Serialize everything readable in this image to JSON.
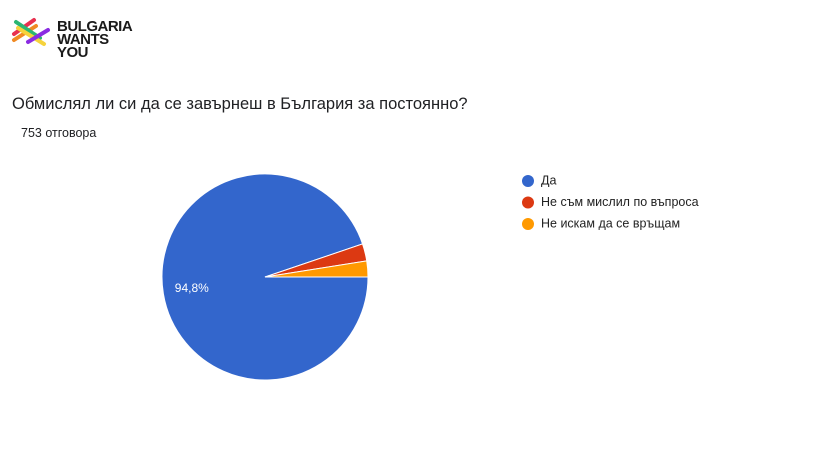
{
  "logo": {
    "lines": [
      "BULGARIA",
      "WANTS",
      "YOU"
    ]
  },
  "question": "Обмислял ли си да се завърнеш в България за постоянно?",
  "responses": "753 отговора",
  "chart_data": {
    "type": "pie",
    "categories": [
      "Да",
      "Не съм мислил по въпроса",
      "Не искам да се връщам"
    ],
    "values": [
      94.8,
      2.7,
      2.5
    ],
    "value_labels": [
      "94,8%",
      null,
      null
    ],
    "colors": [
      "#3366cc",
      "#dc3912",
      "#ff9900"
    ],
    "legend": "right"
  }
}
